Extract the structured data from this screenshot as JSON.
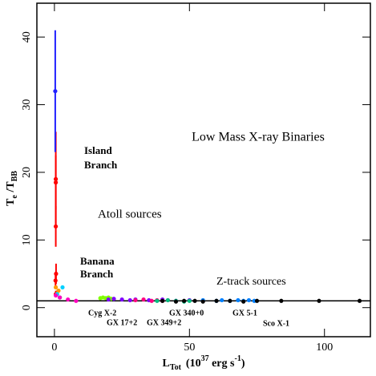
{
  "chart_data": {
    "type": "scatter",
    "title": "Low Mass X-ray Binaries",
    "x_label": [
      "L",
      "Tot",
      "(10",
      "37",
      " erg s",
      "-1",
      ")"
    ],
    "y_label": [
      "T",
      "e",
      " /T",
      "BB"
    ],
    "annotations": [
      "Island",
      "Branch",
      "Atoll sources",
      "Banana",
      "Branch",
      "Z-track sources"
    ],
    "xlim": [
      -6.5,
      117
    ],
    "ylim": [
      -4.3,
      45
    ],
    "xticks": [
      0,
      50,
      100
    ],
    "yticks": [
      0,
      10,
      20,
      30,
      40
    ],
    "hline": 1,
    "series": [
      {
        "color": "#ff0000",
        "x": [
          0.5,
          0.5,
          0.5,
          0.6,
          0.4,
          0.5
        ],
        "values": [
          19,
          18.5,
          12,
          5,
          4,
          2
        ],
        "errors": [
          7,
          4,
          3,
          1.5,
          1,
          0.5
        ]
      },
      {
        "color": "#2020ff",
        "x": [
          0.3
        ],
        "values": [
          32
        ],
        "errors": [
          9
        ]
      },
      {
        "color": "#ff9900",
        "x": [
          0.5,
          1,
          2,
          1.5
        ],
        "values": [
          3,
          2,
          1.5,
          2.5
        ]
      },
      {
        "color": "#00d0ff",
        "x": [
          1,
          2,
          3
        ],
        "values": [
          2,
          1.5,
          3
        ]
      },
      {
        "color": "#ff00c0",
        "x": [
          0.5,
          2,
          5,
          8
        ],
        "values": [
          1.8,
          1.5,
          1.2,
          1
        ]
      },
      {
        "name": "Cyg X-2",
        "color": "#80ff00",
        "x": [
          17,
          18,
          19,
          20,
          21
        ],
        "values": [
          1.4,
          1.5,
          1.4,
          1.5,
          1.3
        ]
      },
      {
        "name": "GX 17+2",
        "color": "#8000ff",
        "x": [
          20,
          22,
          25,
          28,
          30,
          35,
          40,
          45,
          50
        ],
        "values": [
          1.2,
          1.3,
          1.2,
          1.1,
          1.2,
          1.1,
          1.2,
          1.0,
          1.1
        ]
      },
      {
        "name": "GX 349+2",
        "color": "#ff0080",
        "x": [
          30,
          33,
          36,
          38,
          40,
          42
        ],
        "values": [
          1.1,
          1.2,
          1.0,
          1.1,
          1.0,
          1.1
        ]
      },
      {
        "name": "GX 340+0",
        "color": "#00c080",
        "x": [
          38,
          42,
          45,
          48,
          50
        ],
        "values": [
          1.0,
          1.1,
          1.0,
          0.9,
          1.0
        ]
      },
      {
        "name": "GX 5-1",
        "color": "#0080ff",
        "x": [
          55,
          60,
          62,
          65,
          68,
          70,
          72,
          74
        ],
        "values": [
          1.1,
          1.0,
          1.1,
          1.0,
          1.1,
          1.0,
          1.1,
          1.0
        ]
      },
      {
        "name": "Sco X-1",
        "color": "#000000",
        "x": [
          40,
          45,
          48,
          52,
          55,
          60,
          65,
          70,
          75,
          84,
          98,
          113
        ],
        "values": [
          1,
          0.9,
          1,
          1,
          0.9,
          1,
          1,
          0.9,
          1,
          1,
          1,
          1
        ]
      }
    ]
  }
}
